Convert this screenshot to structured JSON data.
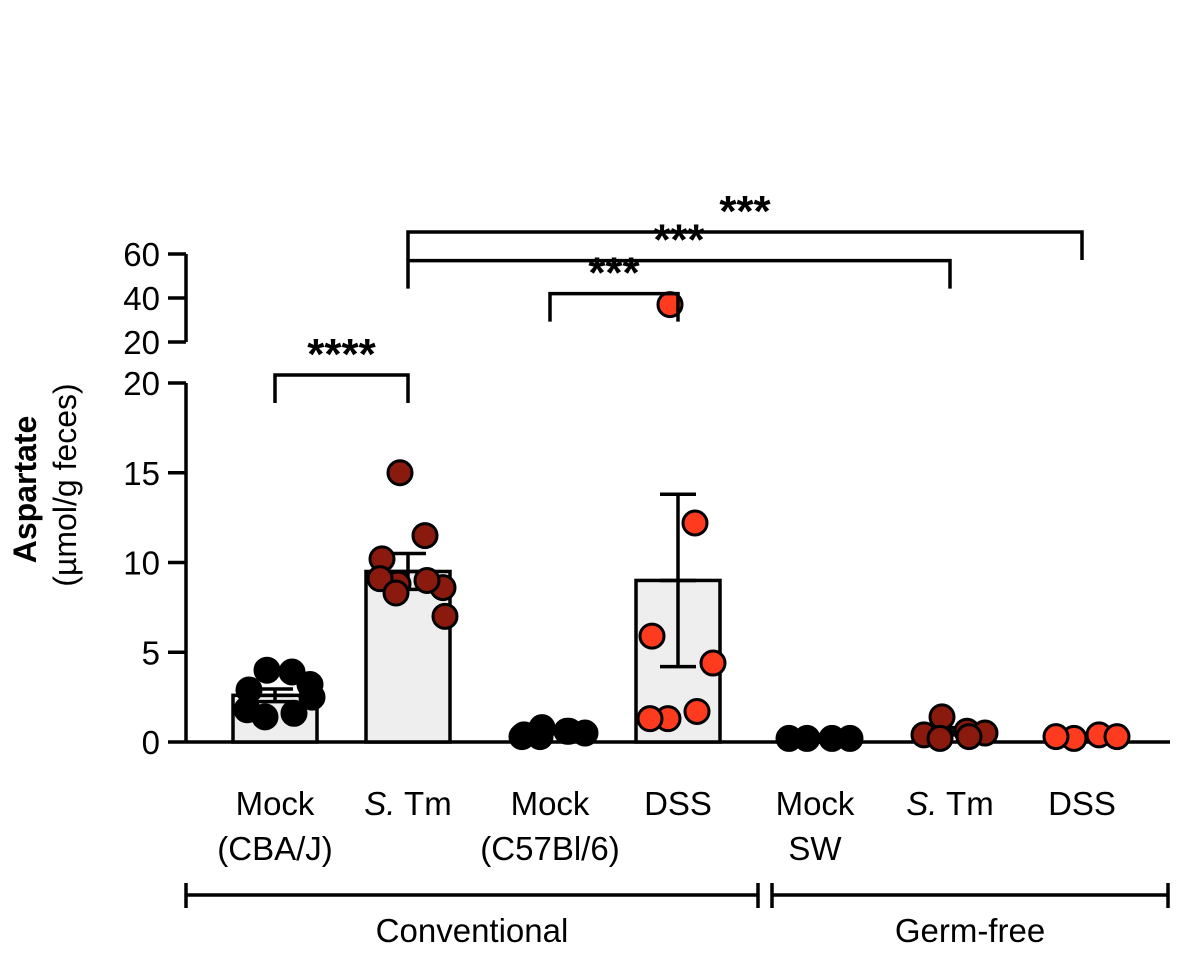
{
  "chart_data": {
    "type": "bar",
    "ylabel": "Aspartate",
    "ylabel_unit": "(µmol/g feces)",
    "y_axis": {
      "lower_segment": {
        "range": [
          0,
          20
        ],
        "ticks": [
          "0",
          "5",
          "10",
          "15",
          "20"
        ]
      },
      "upper_segment": {
        "range": [
          20,
          60
        ],
        "ticks": [
          "20",
          "40",
          "60"
        ]
      },
      "axis_break": true
    },
    "categories": [
      {
        "line1": "Mock",
        "line2": "(CBA/J)",
        "italic_prefix": ""
      },
      {
        "line1": " Tm",
        "line2": "",
        "italic_prefix": "S."
      },
      {
        "line1": "Mock",
        "line2": "(C57Bl/6)",
        "italic_prefix": ""
      },
      {
        "line1": "DSS",
        "line2": "",
        "italic_prefix": ""
      },
      {
        "line1": "Mock",
        "line2": "SW",
        "italic_prefix": ""
      },
      {
        "line1": " Tm",
        "line2": "",
        "italic_prefix": "S."
      },
      {
        "line1": "DSS",
        "line2": "",
        "italic_prefix": ""
      }
    ],
    "groups": [
      {
        "label": "Conventional",
        "categories": [
          0,
          1,
          2,
          3
        ]
      },
      {
        "label": "Germ-free",
        "categories": [
          4,
          5,
          6
        ]
      }
    ],
    "bars": [
      {
        "mean": 2.6,
        "sem": 0.35,
        "color": "#000000",
        "show_bar": true
      },
      {
        "mean": 9.5,
        "sem": 1.0,
        "color": "#8b1a0e",
        "show_bar": true
      },
      {
        "mean": 0.5,
        "sem": 0.05,
        "color": "#000000",
        "show_bar": false
      },
      {
        "mean": 9.0,
        "sem": 4.8,
        "color": "#ff3b1f",
        "show_bar": true
      },
      {
        "mean": 0.2,
        "sem": 0.0,
        "color": "#000000",
        "show_bar": false
      },
      {
        "mean": 0.6,
        "sem": 0.2,
        "color": "#8b1a0e",
        "show_bar": false
      },
      {
        "mean": 0.3,
        "sem": 0.05,
        "color": "#ff3b1f",
        "show_bar": false
      }
    ],
    "points": [
      [
        4.0,
        3.9,
        2.9,
        3.2,
        1.4,
        1.6,
        1.8,
        2.5
      ],
      [
        15.0,
        11.5,
        10.2,
        8.6,
        8.8,
        9.0,
        9.1,
        7.0,
        8.3
      ],
      [
        0.8,
        0.6,
        0.4,
        0.5,
        0.3,
        0.6,
        0.3
      ],
      [
        37,
        12.2,
        5.9,
        4.4,
        1.3,
        1.7,
        1.3
      ],
      [
        0.2,
        0.2,
        0.2,
        0.2
      ],
      [
        1.4,
        0.6,
        0.4,
        0.5,
        0.2,
        0.3
      ],
      [
        0.2,
        0.4,
        0.3,
        0.3
      ]
    ],
    "significance": [
      {
        "from": 0,
        "to": 1,
        "label": "****",
        "level": 20.0
      },
      {
        "from": 2,
        "to": 3,
        "label": "***",
        "level": 42
      },
      {
        "from": 1,
        "to": 5,
        "label": "***",
        "level": 57
      },
      {
        "from": 1,
        "to": 6,
        "label": "***",
        "level": 70
      }
    ],
    "bar_fill": "#eeeeee"
  }
}
